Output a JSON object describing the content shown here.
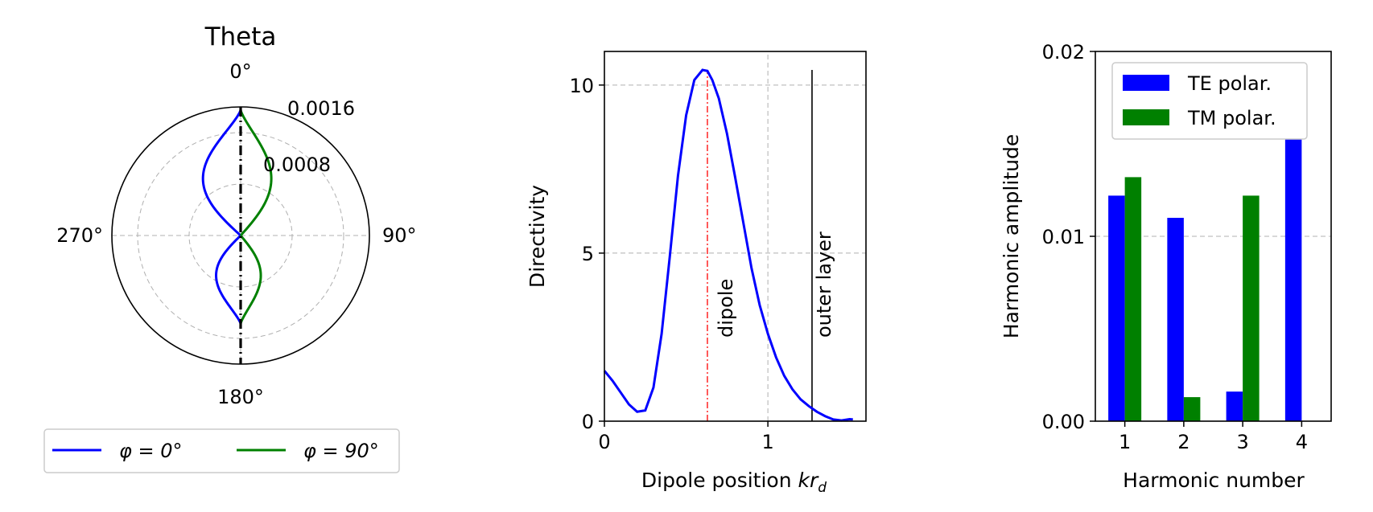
{
  "colors": {
    "te": "#0000ff",
    "tm": "#008000",
    "dipole_marker": "#ff0000",
    "grid": "#b0b0b0",
    "axis": "#000000"
  },
  "chart_data": [
    {
      "type": "polar-line",
      "title": "Theta",
      "angle_ticks": [
        "0°",
        "90°",
        "180°",
        "270°"
      ],
      "radial_ticks": [
        "0.0008",
        "0.0016"
      ],
      "radial_tick_values": [
        0.0008,
        0.0016
      ],
      "rmax": 0.002,
      "grid": true,
      "legend": {
        "placement": "bottom",
        "entries": [
          "φ = 0°",
          "φ = 90°"
        ]
      },
      "series": [
        {
          "name": "φ = 0°",
          "color": "#0000ff",
          "lobes": [
            {
              "direction_deg": 0,
              "peak": 0.00195,
              "width": 0.00043
            },
            {
              "direction_deg": 180,
              "peak": 0.00137,
              "width": 0.00028
            }
          ]
        },
        {
          "name": "φ = 90°",
          "color": "#008000",
          "lobes": [
            {
              "direction_deg": 0,
              "peak": 0.00195,
              "width": 0.00035
            },
            {
              "direction_deg": 180,
              "peak": 0.00137,
              "width": 0.00023
            }
          ]
        }
      ],
      "axis_line_deg": 0
    },
    {
      "type": "line",
      "xlabel": "Dipole position kr_d",
      "ylabel": "Directivity",
      "xlim": [
        0,
        1.6
      ],
      "ylim": [
        0,
        11
      ],
      "xticks": [
        0,
        1
      ],
      "xtick_labels": [
        "0",
        "1"
      ],
      "yticks": [
        0,
        5,
        10
      ],
      "ytick_labels": [
        "0",
        "5",
        "10"
      ],
      "grid": true,
      "series": [
        {
          "color": "#0000ff",
          "x": [
            0,
            0.05,
            0.1,
            0.15,
            0.2,
            0.25,
            0.3,
            0.35,
            0.4,
            0.45,
            0.5,
            0.55,
            0.6,
            0.63,
            0.66,
            0.7,
            0.75,
            0.8,
            0.85,
            0.9,
            0.95,
            1.0,
            1.05,
            1.1,
            1.15,
            1.2,
            1.25,
            1.3,
            1.35,
            1.4,
            1.45,
            1.5,
            1.52
          ],
          "y": [
            1.5,
            1.2,
            0.85,
            0.5,
            0.28,
            0.32,
            1.0,
            2.6,
            4.9,
            7.3,
            9.1,
            10.15,
            10.45,
            10.42,
            10.15,
            9.6,
            8.55,
            7.25,
            5.9,
            4.55,
            3.45,
            2.6,
            1.9,
            1.35,
            0.95,
            0.65,
            0.45,
            0.28,
            0.15,
            0.05,
            0.02,
            0.06,
            0.05
          ]
        }
      ],
      "annotations": [
        {
          "label": "dipole",
          "x": 0.63,
          "color": "#ff0000",
          "style": "dashdot"
        },
        {
          "label": "outer layer",
          "x": 1.27,
          "color": "#000000",
          "style": "solid"
        }
      ]
    },
    {
      "type": "bar",
      "xlabel": "Harmonic number",
      "ylabel": "Harmonic amplitude",
      "categories": [
        "1",
        "2",
        "3",
        "4"
      ],
      "ylim": [
        0,
        0.02
      ],
      "yticks": [
        0,
        0.01,
        0.02
      ],
      "ytick_labels": [
        "0.00",
        "0.01",
        "0.02"
      ],
      "grid": true,
      "legend": {
        "placement": "top-right"
      },
      "series": [
        {
          "name": "TE polar.",
          "color": "#0000ff",
          "values": [
            0.0122,
            0.011,
            0.0016,
            0.019
          ]
        },
        {
          "name": "TM polar.",
          "color": "#008000",
          "values": [
            0.0132,
            0.0013,
            0.0122,
            0.0
          ]
        }
      ]
    }
  ]
}
